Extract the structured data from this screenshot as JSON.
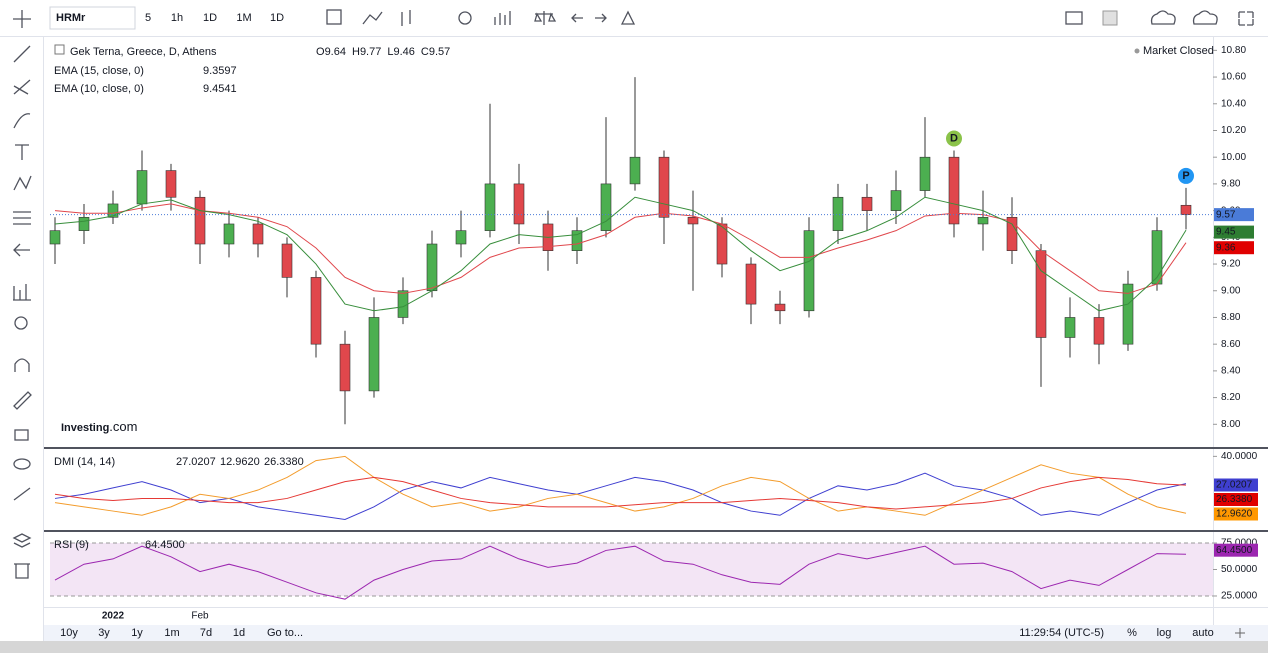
{
  "toolbar": {
    "symbol": "HRMr",
    "intervals": [
      "5",
      "1h",
      "1D",
      "1M",
      "1D"
    ]
  },
  "header": {
    "title": "Gek Terna, Greece, D, Athens",
    "ohlc_prefixes": [
      "O",
      "H",
      "L",
      "C"
    ],
    "status": "Market Closed",
    "logo": "Investing",
    "logo_suffix": ".com"
  },
  "footer": {
    "ranges": [
      "10y",
      "3y",
      "1y",
      "1m",
      "7d",
      "1d"
    ],
    "goto": "Go to...",
    "clock": "11:29:54 (UTC-5)",
    "options": [
      "%",
      "log",
      "auto"
    ]
  },
  "chart_data": [
    {
      "type": "candlestick",
      "legend": "EMA",
      "categories": [
        null,
        null,
        "2022",
        null,
        null,
        "Feb",
        null,
        null,
        null,
        null,
        null,
        null,
        null,
        null,
        null,
        null,
        null,
        null,
        null,
        null,
        null,
        null,
        null,
        null,
        null,
        null,
        null,
        null,
        null,
        null,
        null,
        null,
        null,
        null,
        null,
        null,
        null,
        null,
        null,
        null
      ],
      "open": [
        9.35,
        9.45,
        9.55,
        9.65,
        9.9,
        9.7,
        9.35,
        9.5,
        9.35,
        9.1,
        8.6,
        8.25,
        8.8,
        9.0,
        9.35,
        9.45,
        9.8,
        9.5,
        9.3,
        9.45,
        9.8,
        10.0,
        9.55,
        9.5,
        9.2,
        8.9,
        8.85,
        9.45,
        9.7,
        9.6,
        9.75,
        10.0,
        9.5,
        9.55,
        9.3,
        8.65,
        8.8,
        8.6,
        9.05,
        9.64
      ],
      "high": [
        9.55,
        9.65,
        9.75,
        10.05,
        9.95,
        9.75,
        9.6,
        9.55,
        9.4,
        9.15,
        8.7,
        8.95,
        9.1,
        9.45,
        9.6,
        10.4,
        9.95,
        9.6,
        9.55,
        10.3,
        10.6,
        10.05,
        9.75,
        9.55,
        9.25,
        9.0,
        9.55,
        9.8,
        9.8,
        9.9,
        10.3,
        10.05,
        9.75,
        9.7,
        9.35,
        8.95,
        8.9,
        9.15,
        9.55,
        9.77
      ],
      "low": [
        9.2,
        9.35,
        9.5,
        9.6,
        9.6,
        9.2,
        9.25,
        9.25,
        8.95,
        8.5,
        8.0,
        8.2,
        8.75,
        8.95,
        9.25,
        9.4,
        9.35,
        9.15,
        9.2,
        9.4,
        9.75,
        9.35,
        9.0,
        9.1,
        8.75,
        8.75,
        8.8,
        9.35,
        9.45,
        9.5,
        9.7,
        9.4,
        9.3,
        9.2,
        8.28,
        8.5,
        8.45,
        8.55,
        9.0,
        9.46
      ],
      "close": [
        9.45,
        9.55,
        9.65,
        9.9,
        9.7,
        9.35,
        9.5,
        9.35,
        9.1,
        8.6,
        8.25,
        8.8,
        9.0,
        9.35,
        9.45,
        9.8,
        9.5,
        9.3,
        9.45,
        9.8,
        10.0,
        9.55,
        9.5,
        9.2,
        8.9,
        8.85,
        9.45,
        9.7,
        9.6,
        9.75,
        10.0,
        9.5,
        9.55,
        9.3,
        8.65,
        8.8,
        8.6,
        9.05,
        9.45,
        9.57
      ],
      "up_color": "#4caf50",
      "down_color": "#e0474c",
      "series": [
        {
          "name": "EMA (15, close, 0)",
          "color": "#e0474c",
          "axis_label": "9.36",
          "values": [
            9.6,
            9.58,
            9.58,
            9.62,
            9.65,
            9.6,
            9.58,
            9.55,
            9.48,
            9.32,
            9.1,
            9.0,
            8.98,
            9.02,
            9.1,
            9.25,
            9.32,
            9.33,
            9.35,
            9.42,
            9.55,
            9.58,
            9.56,
            9.5,
            9.38,
            9.25,
            9.25,
            9.32,
            9.38,
            9.45,
            9.56,
            9.58,
            9.57,
            9.52,
            9.3,
            9.15,
            9.0,
            8.98,
            9.05,
            9.3597
          ]
        },
        {
          "name": "EMA (10, close, 0)",
          "color": "#388e3c",
          "axis_label": "9.45",
          "values": [
            9.5,
            9.52,
            9.56,
            9.65,
            9.68,
            9.6,
            9.57,
            9.52,
            9.42,
            9.2,
            8.9,
            8.85,
            8.88,
            9.0,
            9.15,
            9.35,
            9.42,
            9.4,
            9.42,
            9.52,
            9.7,
            9.65,
            9.6,
            9.48,
            9.3,
            9.15,
            9.22,
            9.38,
            9.45,
            9.55,
            9.7,
            9.65,
            9.6,
            9.5,
            9.15,
            9.0,
            8.85,
            8.9,
            9.1,
            9.4541
          ]
        }
      ],
      "markers": [
        {
          "label": "D",
          "index": 31,
          "color": "#8bc34a"
        },
        {
          "label": "P",
          "index": 39,
          "color": "#2196f3"
        }
      ],
      "last_color": "#4a7bd8",
      "ylim": [
        7.83,
        10.9
      ],
      "yticks": [
        {
          "value": 8.0,
          "label": "8.00"
        },
        {
          "value": 8.2,
          "label": "8.20"
        },
        {
          "value": 8.4,
          "label": "8.40"
        },
        {
          "value": 8.6,
          "label": "8.60"
        },
        {
          "value": 8.8,
          "label": "8.80"
        },
        {
          "value": 9.0,
          "label": "9.00"
        },
        {
          "value": 9.2,
          "label": "9.20"
        },
        {
          "value": 9.4,
          "label": "9.40"
        },
        {
          "value": 9.6,
          "label": "9.60"
        },
        {
          "value": 9.8,
          "label": "9.80"
        },
        {
          "value": 10.0,
          "label": "10.00"
        },
        {
          "value": 10.2,
          "label": "10.20"
        },
        {
          "value": 10.4,
          "label": "10.40"
        },
        {
          "value": 10.6,
          "label": "10.60"
        },
        {
          "value": 10.8,
          "label": "10.80"
        }
      ]
    },
    {
      "type": "line",
      "legend": "DMI (14, 14)",
      "series": [
        {
          "name": "+DI",
          "color": "#3f3fd0",
          "last_label": "27.0207",
          "values": [
            20,
            22,
            25,
            28,
            24,
            18,
            20,
            16,
            14,
            12,
            10,
            16,
            24,
            28,
            25,
            30,
            27,
            24,
            22,
            26,
            30,
            28,
            24,
            18,
            14,
            12,
            20,
            26,
            24,
            27,
            32,
            26,
            24,
            20,
            12,
            14,
            12,
            18,
            24,
            27.0207
          ]
        },
        {
          "name": "-DI",
          "color": "#f39c2c",
          "last_label": "12.9620",
          "values": [
            18,
            16,
            14,
            12,
            16,
            22,
            20,
            24,
            30,
            38,
            40,
            30,
            22,
            16,
            18,
            14,
            16,
            20,
            22,
            18,
            14,
            16,
            20,
            26,
            30,
            28,
            20,
            14,
            16,
            14,
            12,
            18,
            24,
            30,
            36,
            32,
            30,
            22,
            16,
            12.962
          ]
        },
        {
          "name": "ADX",
          "color": "#e53935",
          "last_label": "26.3380",
          "values": [
            22,
            20,
            19,
            20,
            20,
            19,
            18,
            18,
            20,
            24,
            28,
            30,
            28,
            24,
            20,
            18,
            17,
            16,
            16,
            16,
            17,
            18,
            18,
            18,
            19,
            20,
            19,
            18,
            16,
            15,
            16,
            17,
            18,
            20,
            25,
            28,
            30,
            29,
            27,
            26.338
          ]
        }
      ],
      "ylim": [
        5,
        43.5
      ],
      "yticks": [
        {
          "value": 40,
          "label": "40.0000"
        }
      ]
    },
    {
      "type": "line",
      "legend": "RSI (9)",
      "band": true,
      "series": [
        {
          "name": "RSI",
          "color": "#9c27b0",
          "last_label": "64.4500",
          "values": [
            40,
            55,
            60,
            72,
            62,
            48,
            55,
            48,
            38,
            28,
            22,
            40,
            50,
            58,
            60,
            72,
            60,
            52,
            56,
            68,
            72,
            58,
            55,
            45,
            38,
            36,
            55,
            65,
            60,
            66,
            72,
            55,
            56,
            48,
            32,
            40,
            35,
            50,
            65,
            64.45
          ]
        }
      ],
      "ylim": [
        14.6,
        85.4
      ],
      "yticks": [
        {
          "value": 25,
          "label": "25.0000"
        },
        {
          "value": 50,
          "label": "50.0000"
        },
        {
          "value": 75,
          "label": "75.0000"
        }
      ]
    }
  ]
}
